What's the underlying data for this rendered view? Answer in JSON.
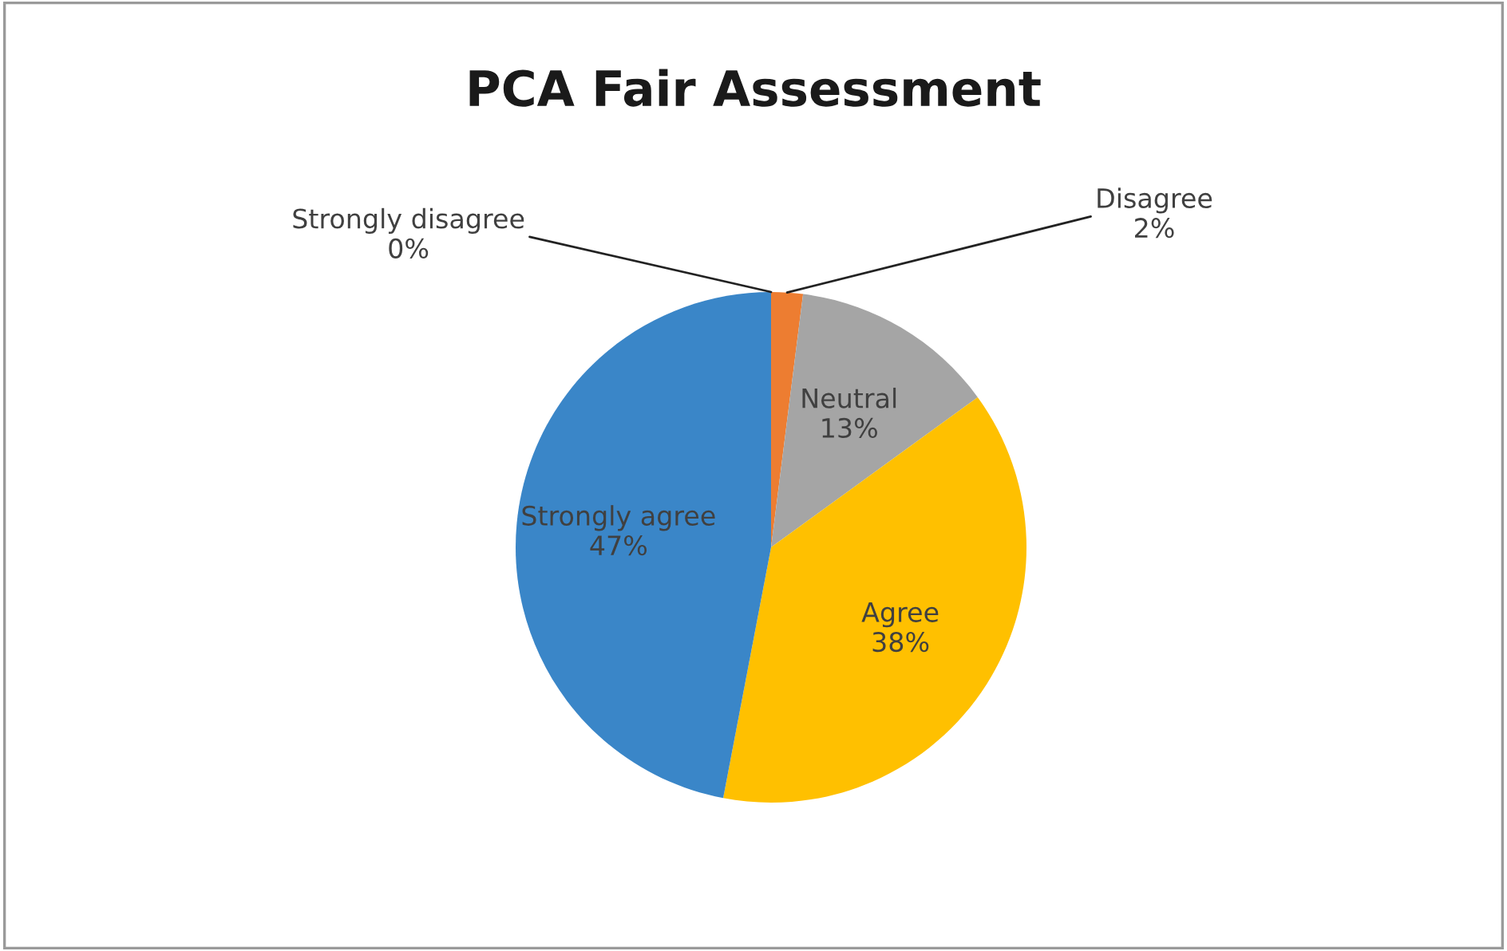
{
  "chart_data": {
    "type": "pie",
    "title": "PCA Fair Assessment",
    "categories": [
      "Strongly disagree",
      "Disagree",
      "Neutral",
      "Agree",
      "Strongly agree"
    ],
    "values": [
      0,
      2,
      13,
      38,
      47
    ],
    "value_labels": [
      "0%",
      "2%",
      "13%",
      "38%",
      "47%"
    ],
    "colors": [
      "#4472c4",
      "#ed7d31",
      "#a5a5a5",
      "#ffc000",
      "#3a86c8"
    ]
  }
}
